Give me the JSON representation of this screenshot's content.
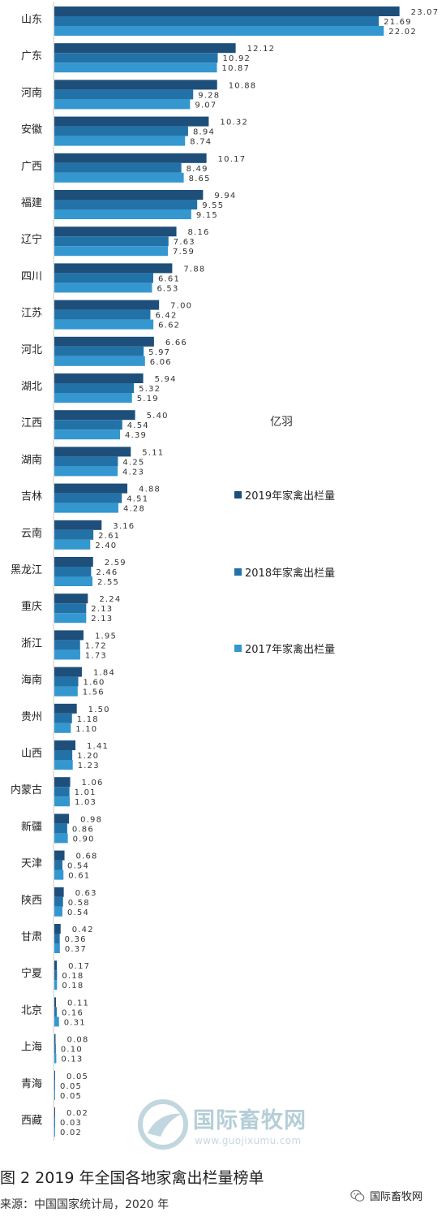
{
  "chart_data": {
    "type": "bar",
    "orientation": "horizontal",
    "unit": "亿羽",
    "categories": [
      "山东",
      "广东",
      "河南",
      "安徽",
      "广西",
      "福建",
      "辽宁",
      "四川",
      "江苏",
      "河北",
      "湖北",
      "江西",
      "湖南",
      "吉林",
      "云南",
      "黑龙江",
      "重庆",
      "浙江",
      "海南",
      "贵州",
      "山西",
      "内蒙古",
      "新疆",
      "天津",
      "陕西",
      "甘肃",
      "宁夏",
      "北京",
      "上海",
      "青海",
      "西藏"
    ],
    "series": [
      {
        "name": "2019年家禽出栏量",
        "color": "#1d4f7a",
        "values": [
          23.07,
          12.12,
          10.88,
          10.32,
          10.17,
          9.94,
          8.16,
          7.88,
          7.0,
          6.66,
          5.94,
          5.4,
          5.11,
          4.88,
          3.16,
          2.59,
          2.24,
          1.95,
          1.84,
          1.5,
          1.41,
          1.06,
          0.98,
          0.68,
          0.63,
          0.42,
          0.17,
          0.11,
          0.08,
          0.05,
          0.02
        ]
      },
      {
        "name": "2018年家禽出栏量",
        "color": "#2272a8",
        "values": [
          21.69,
          10.92,
          9.28,
          8.94,
          8.49,
          9.55,
          7.63,
          6.61,
          6.42,
          5.97,
          5.32,
          4.54,
          4.25,
          4.51,
          2.61,
          2.46,
          2.13,
          1.72,
          1.6,
          1.18,
          1.2,
          1.01,
          0.86,
          0.54,
          0.58,
          0.36,
          0.18,
          0.16,
          0.1,
          0.05,
          0.03
        ]
      },
      {
        "name": "2017年家禽出栏量",
        "color": "#3497cf",
        "values": [
          22.02,
          10.87,
          9.07,
          8.74,
          8.65,
          9.15,
          7.59,
          6.53,
          6.62,
          6.06,
          5.19,
          4.39,
          4.23,
          4.28,
          2.4,
          2.55,
          2.13,
          1.73,
          1.56,
          1.1,
          1.23,
          1.03,
          0.9,
          0.61,
          0.54,
          0.37,
          0.18,
          0.31,
          0.13,
          0.05,
          0.02
        ]
      }
    ],
    "value_labels": {
      "2019": [
        "23.07",
        "12.12",
        "10.88",
        "10.32",
        "10.17",
        "9.94",
        "8.16",
        "7.88",
        "7.00",
        "6.66",
        "5.94",
        "5.40",
        "5.11",
        "4.88",
        "3.16",
        "2.59",
        "2.24",
        "1.95",
        "1.84",
        "1.50",
        "1.41",
        "1.06",
        "0.98",
        "0.68",
        "0.63",
        "0.42",
        "0.17",
        "0.11",
        "0.08",
        "0.05",
        "0.02"
      ],
      "2018": [
        "21.69",
        "10.92",
        "9.28",
        "8.94",
        "8.49",
        "9.55",
        "7.63",
        "6.61",
        "6.42",
        "5.97",
        "5.32",
        "4.54",
        "4.25",
        "4.51",
        "2.61",
        "2.46",
        "2.13",
        "1.72",
        "1.60",
        "1.18",
        "1.20",
        "1.01",
        "0.86",
        "0.54",
        "0.58",
        "0.36",
        "0.18",
        "0.16",
        "0.10",
        "0.05",
        "0.03"
      ],
      "2017": [
        "22.02",
        "10.87",
        "9.07",
        "8.74",
        "8.65",
        "9.15",
        "7.59",
        "6.53",
        "6.62",
        "6.06",
        "5.19",
        "4.39",
        "4.23",
        "4.28",
        "2.40",
        "2.55",
        "2.13",
        "1.73",
        "1.56",
        "1.10",
        "1.23",
        "1.03",
        "0.90",
        "0.61",
        "0.54",
        "0.37",
        "0.18",
        "0.31",
        "0.13",
        "0.05",
        "0.02"
      ]
    },
    "legend_placement": "right",
    "grid": false
  },
  "legend": {
    "unit": "亿羽",
    "items": [
      "2019年家禽出栏量",
      "2018年家禽出栏量",
      "2017年家禽出栏量"
    ]
  },
  "watermark": {
    "name": "国际畜牧网",
    "url": "www.guojixumu.com"
  },
  "caption": "图 2  2019 年全国各地家禽出栏量榜单",
  "source": "来源：中国国家统计局，2020 年",
  "wechat": "国际畜牧网",
  "colors": {
    "s2019": "#1d4f7a",
    "s2018": "#2272a8",
    "s2017": "#3497cf"
  }
}
